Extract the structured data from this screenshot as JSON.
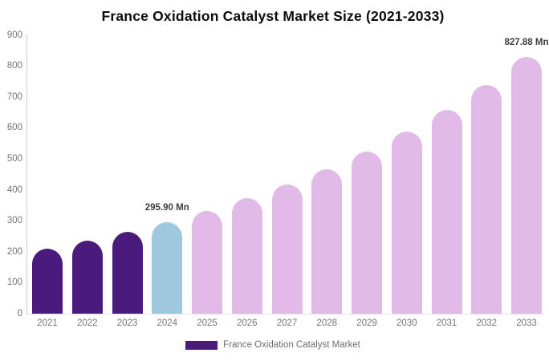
{
  "title": "France Oxidation Catalyst Market Size (2021-2033)",
  "chart_data": {
    "type": "bar",
    "title": "France Oxidation Catalyst Market Size (2021-2033)",
    "categories": [
      "2021",
      "2022",
      "2023",
      "2024",
      "2025",
      "2026",
      "2027",
      "2028",
      "2029",
      "2030",
      "2031",
      "2032",
      "2033"
    ],
    "values": [
      210,
      236,
      264,
      295.9,
      332,
      372,
      417,
      467,
      524,
      587,
      659,
      738,
      827.88
    ],
    "value_labels": [
      "",
      "",
      "",
      "295.90 Mn",
      "",
      "",
      "",
      "",
      "",
      "",
      "",
      "",
      "827.88 Mn"
    ],
    "bar_roles": [
      "historical",
      "historical",
      "historical",
      "base",
      "forecast",
      "forecast",
      "forecast",
      "forecast",
      "forecast",
      "forecast",
      "forecast",
      "forecast",
      "forecast"
    ],
    "colors": {
      "historical": "#4a1a7d",
      "base": "#9fc8de",
      "forecast": "#e2bae8"
    },
    "xlabel": "",
    "ylabel": "",
    "ylim": [
      0,
      900
    ],
    "y_ticks": [
      900,
      800,
      700,
      600,
      500,
      400,
      300,
      200,
      100,
      0
    ],
    "grid": false,
    "legend": {
      "position": "bottom",
      "entries": [
        {
          "label": "France Oxidation Catalyst Market",
          "color": "#4a1a7d"
        }
      ]
    }
  }
}
